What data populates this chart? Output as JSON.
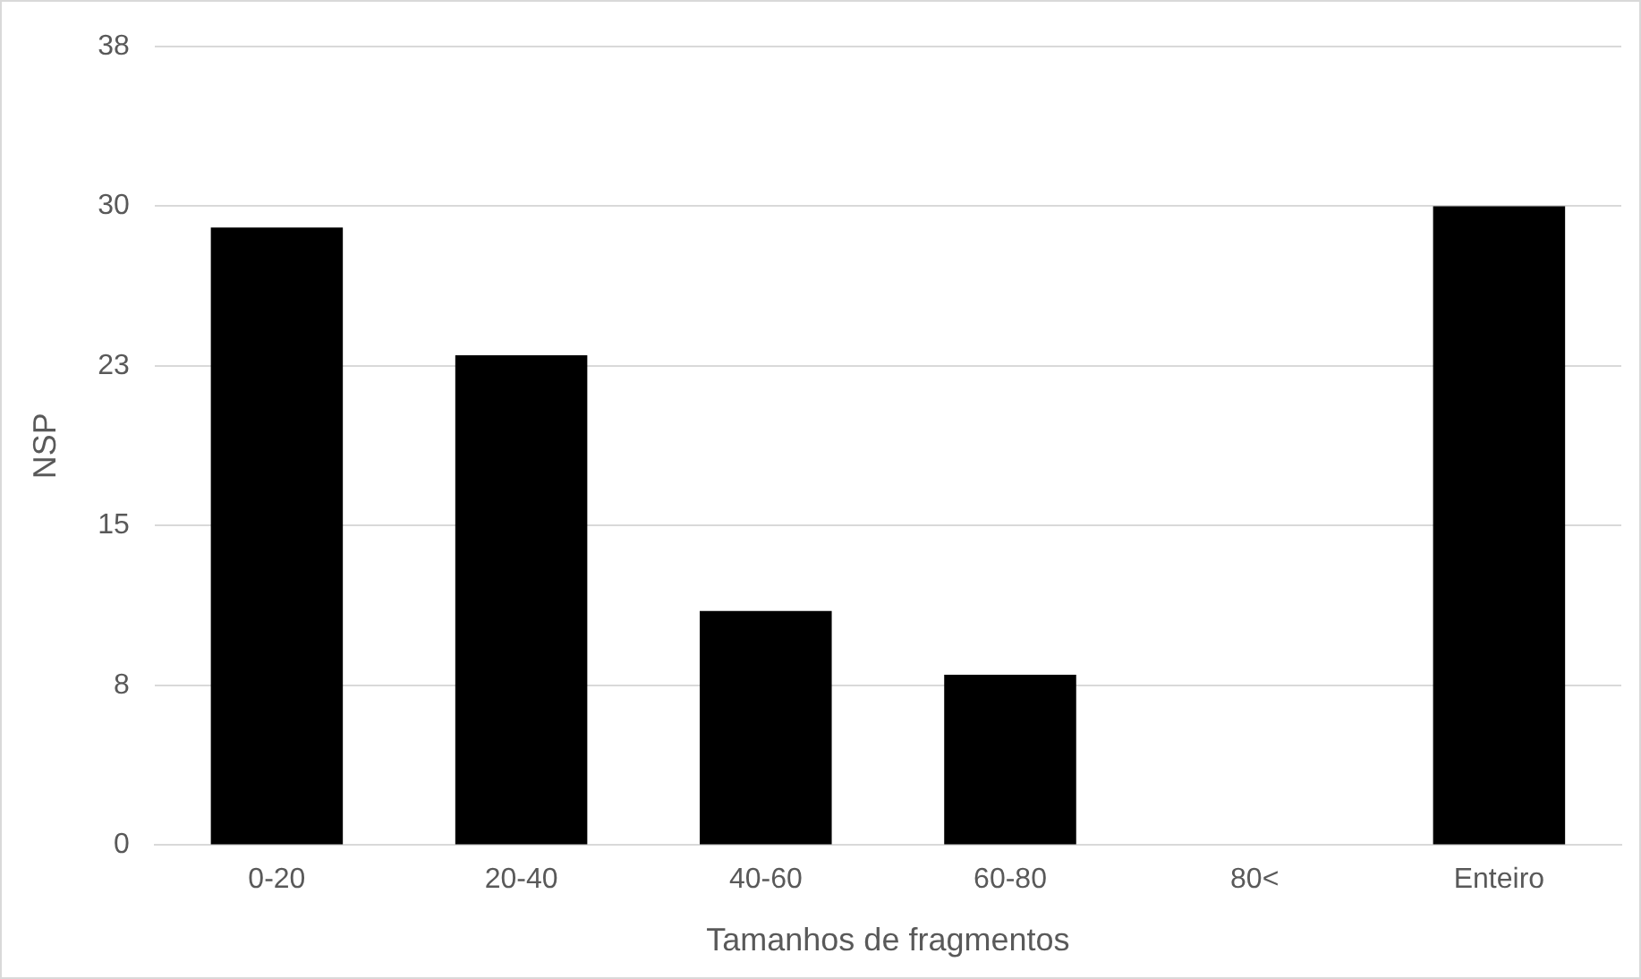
{
  "chart_data": {
    "type": "bar",
    "xlabel": "Tamanhos de fragmentos",
    "ylabel": "NSP",
    "categories": [
      "0-20",
      "20-40",
      "40-60",
      "60-80",
      "80<",
      "Enteiro"
    ],
    "values": [
      29,
      23,
      11,
      8,
      0,
      30
    ],
    "color": "#000000",
    "ylim": [
      0,
      37.5
    ],
    "yticks": [
      0,
      {
        "value": 7.5,
        "label": "8"
      },
      15,
      {
        "value": 22.5,
        "label": "23"
      },
      30,
      {
        "value": 37.5,
        "label": "38"
      }
    ],
    "grid": "y",
    "legend": false
  }
}
